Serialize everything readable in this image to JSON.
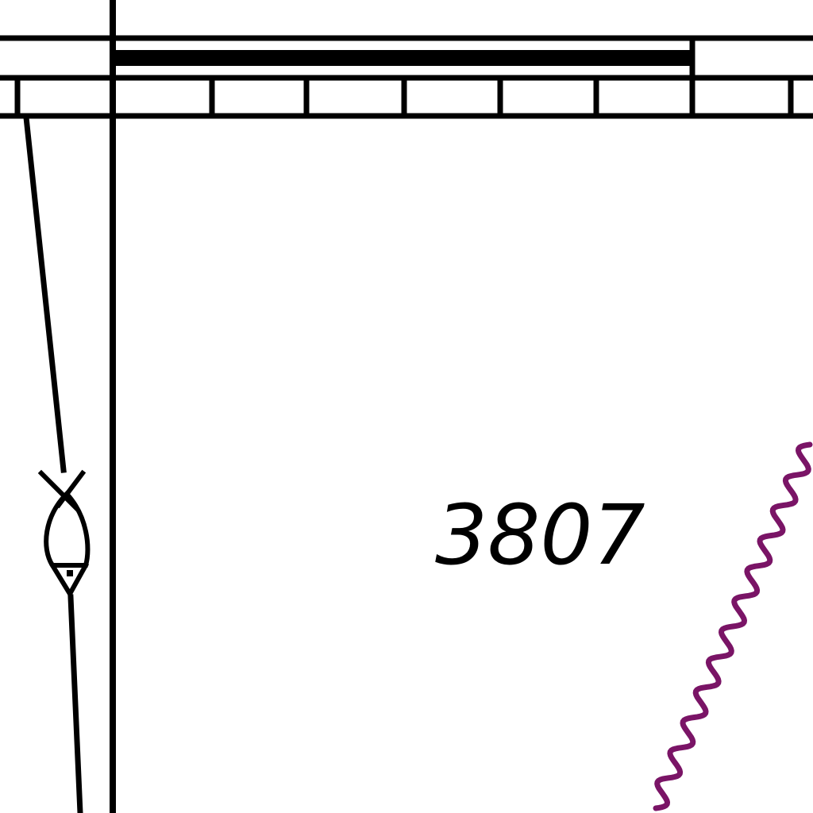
{
  "map": {
    "depth_sounding": "3807",
    "colors": {
      "background": "#ffffff",
      "linework": "#000000",
      "restricted_area_boundary": "#7a1466"
    },
    "symbols": [
      "chart-border-scale",
      "float-buoy-icon",
      "restricted-area-boundary"
    ]
  }
}
